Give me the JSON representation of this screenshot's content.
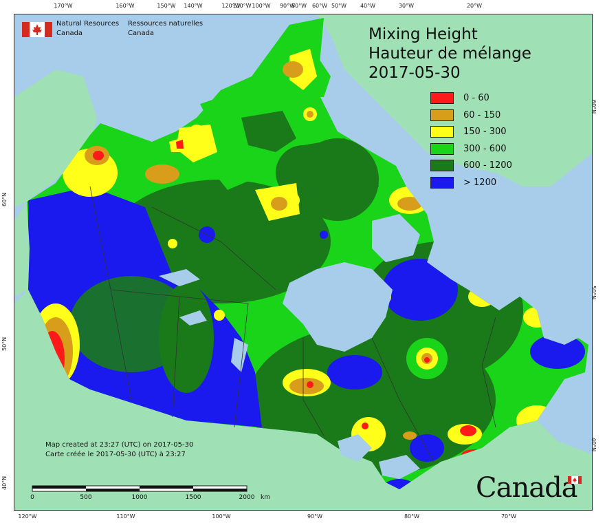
{
  "header": {
    "agency_en_line1": "Natural Resources",
    "agency_en_line2": "Canada",
    "agency_fr_line1": "Ressources naturelles",
    "agency_fr_line2": "Canada"
  },
  "title": {
    "line_en": "Mixing Height",
    "line_fr": "Hauteur de mélange",
    "date": "2017-05-30"
  },
  "legend": [
    {
      "label": "0 - 60",
      "color": "#ff1a1a"
    },
    {
      "label": "60 - 150",
      "color": "#d89d1a"
    },
    {
      "label": "150 - 300",
      "color": "#ffff1a"
    },
    {
      "label": "300 - 600",
      "color": "#1ad41a"
    },
    {
      "label": "600 - 1200",
      "color": "#1a7a1a"
    },
    {
      "label": "> 1200",
      "color": "#1a1aee"
    }
  ],
  "credits": {
    "line_en": "Map created at 23:27 (UTC) on 2017-05-30",
    "line_fr": "Carte créée le 2017-05-30 (UTC) à 23:27"
  },
  "scale": {
    "labels": [
      "0",
      "500",
      "1000",
      "1500",
      "2000"
    ],
    "unit": "km"
  },
  "graticule": {
    "top": [
      "170°W",
      "160°W",
      "150°W",
      "140°W",
      "120°W",
      "110°W",
      "100°W",
      "90°W",
      "80°W",
      "60°W",
      "50°W",
      "40°W",
      "30°W",
      "20°W"
    ],
    "bottom": [
      "120°W",
      "110°W",
      "100°W",
      "90°W",
      "80°W",
      "70°W"
    ],
    "left": [
      "60°N",
      "50°N",
      "40°N"
    ],
    "right": [
      "60°N",
      "50°N",
      "40°N"
    ]
  },
  "wordmark": "Canada",
  "colors": {
    "ocean": "#a8cdea",
    "land_outside": "#9fe0b5",
    "lake": "#a8cdea"
  }
}
